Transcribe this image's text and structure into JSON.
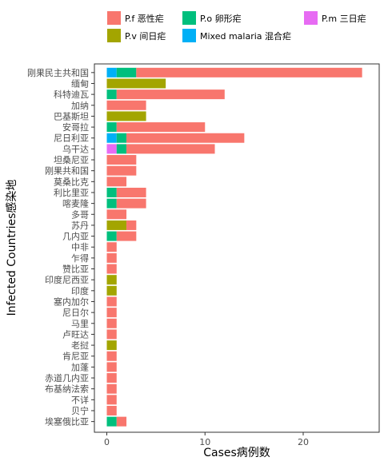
{
  "chart_data": {
    "type": "bar",
    "orientation": "horizontal",
    "stacked": true,
    "xlabel": "Cases病例数",
    "ylabel": "Infected Countries感染地",
    "xlim": [
      0,
      27.3
    ],
    "xticks": [
      0,
      10,
      20
    ],
    "grid": false,
    "legend_position": "top",
    "legend_order": [
      "P.f 恶性疟",
      "P.v 间日疟",
      "P.o 卵形疟",
      "Mixed malaria 混合疟",
      "P.m 三日疟"
    ],
    "stack_order": [
      "Mixed malaria 混合疟",
      "P.m 三日疟",
      "P.o 卵形疟",
      "P.v 间日疟",
      "P.f 恶性疟"
    ],
    "categories": [
      "刚果民主共和国",
      "缅甸",
      "科特迪瓦",
      "加纳",
      "巴基斯坦",
      "安哥拉",
      "尼日利亚",
      "乌干达",
      "坦桑尼亚",
      "刚果共和国",
      "莫桑比克",
      "利比里亚",
      "喀麦隆",
      "多哥",
      "苏丹",
      "几内亚",
      "中非",
      "乍得",
      "赞比亚",
      "印度尼西亚",
      "印度",
      "塞内加尔",
      "尼日尔",
      "马里",
      "卢旺达",
      "老挝",
      "肯尼亚",
      "加蓬",
      "赤道几内亚",
      "布基纳法索",
      "不详",
      "贝宁",
      "埃塞俄比亚"
    ],
    "series": [
      {
        "name": "P.f 恶性疟",
        "color": "#F8766D",
        "values": [
          23,
          0,
          11,
          4,
          0,
          9,
          12,
          9,
          3,
          3,
          2,
          3,
          3,
          2,
          1,
          2,
          1,
          1,
          1,
          0,
          0,
          1,
          1,
          1,
          1,
          0,
          1,
          1,
          1,
          1,
          1,
          1,
          1
        ]
      },
      {
        "name": "P.v 间日疟",
        "color": "#A3A500",
        "values": [
          0,
          6,
          0,
          0,
          4,
          0,
          0,
          0,
          0,
          0,
          0,
          0,
          0,
          0,
          2,
          0,
          0,
          0,
          0,
          1,
          1,
          0,
          0,
          0,
          0,
          1,
          0,
          0,
          0,
          0,
          0,
          0,
          0
        ]
      },
      {
        "name": "P.o 卵形疟",
        "color": "#00BF7D",
        "values": [
          2,
          0,
          1,
          0,
          0,
          1,
          1,
          1,
          0,
          0,
          0,
          1,
          1,
          0,
          0,
          1,
          0,
          0,
          0,
          0,
          0,
          0,
          0,
          0,
          0,
          0,
          0,
          0,
          0,
          0,
          0,
          0,
          1
        ]
      },
      {
        "name": "Mixed malaria 混合疟",
        "color": "#00B0F6",
        "values": [
          1,
          0,
          0,
          0,
          0,
          0,
          1,
          0,
          0,
          0,
          0,
          0,
          0,
          0,
          0,
          0,
          0,
          0,
          0,
          0,
          0,
          0,
          0,
          0,
          0,
          0,
          0,
          0,
          0,
          0,
          0,
          0,
          0
        ]
      },
      {
        "name": "P.m 三日疟",
        "color": "#E76BF3",
        "values": [
          0,
          0,
          0,
          0,
          0,
          0,
          0,
          1,
          0,
          0,
          0,
          0,
          0,
          0,
          0,
          0,
          0,
          0,
          0,
          0,
          0,
          0,
          0,
          0,
          0,
          0,
          0,
          0,
          0,
          0,
          0,
          0,
          0
        ]
      }
    ]
  }
}
